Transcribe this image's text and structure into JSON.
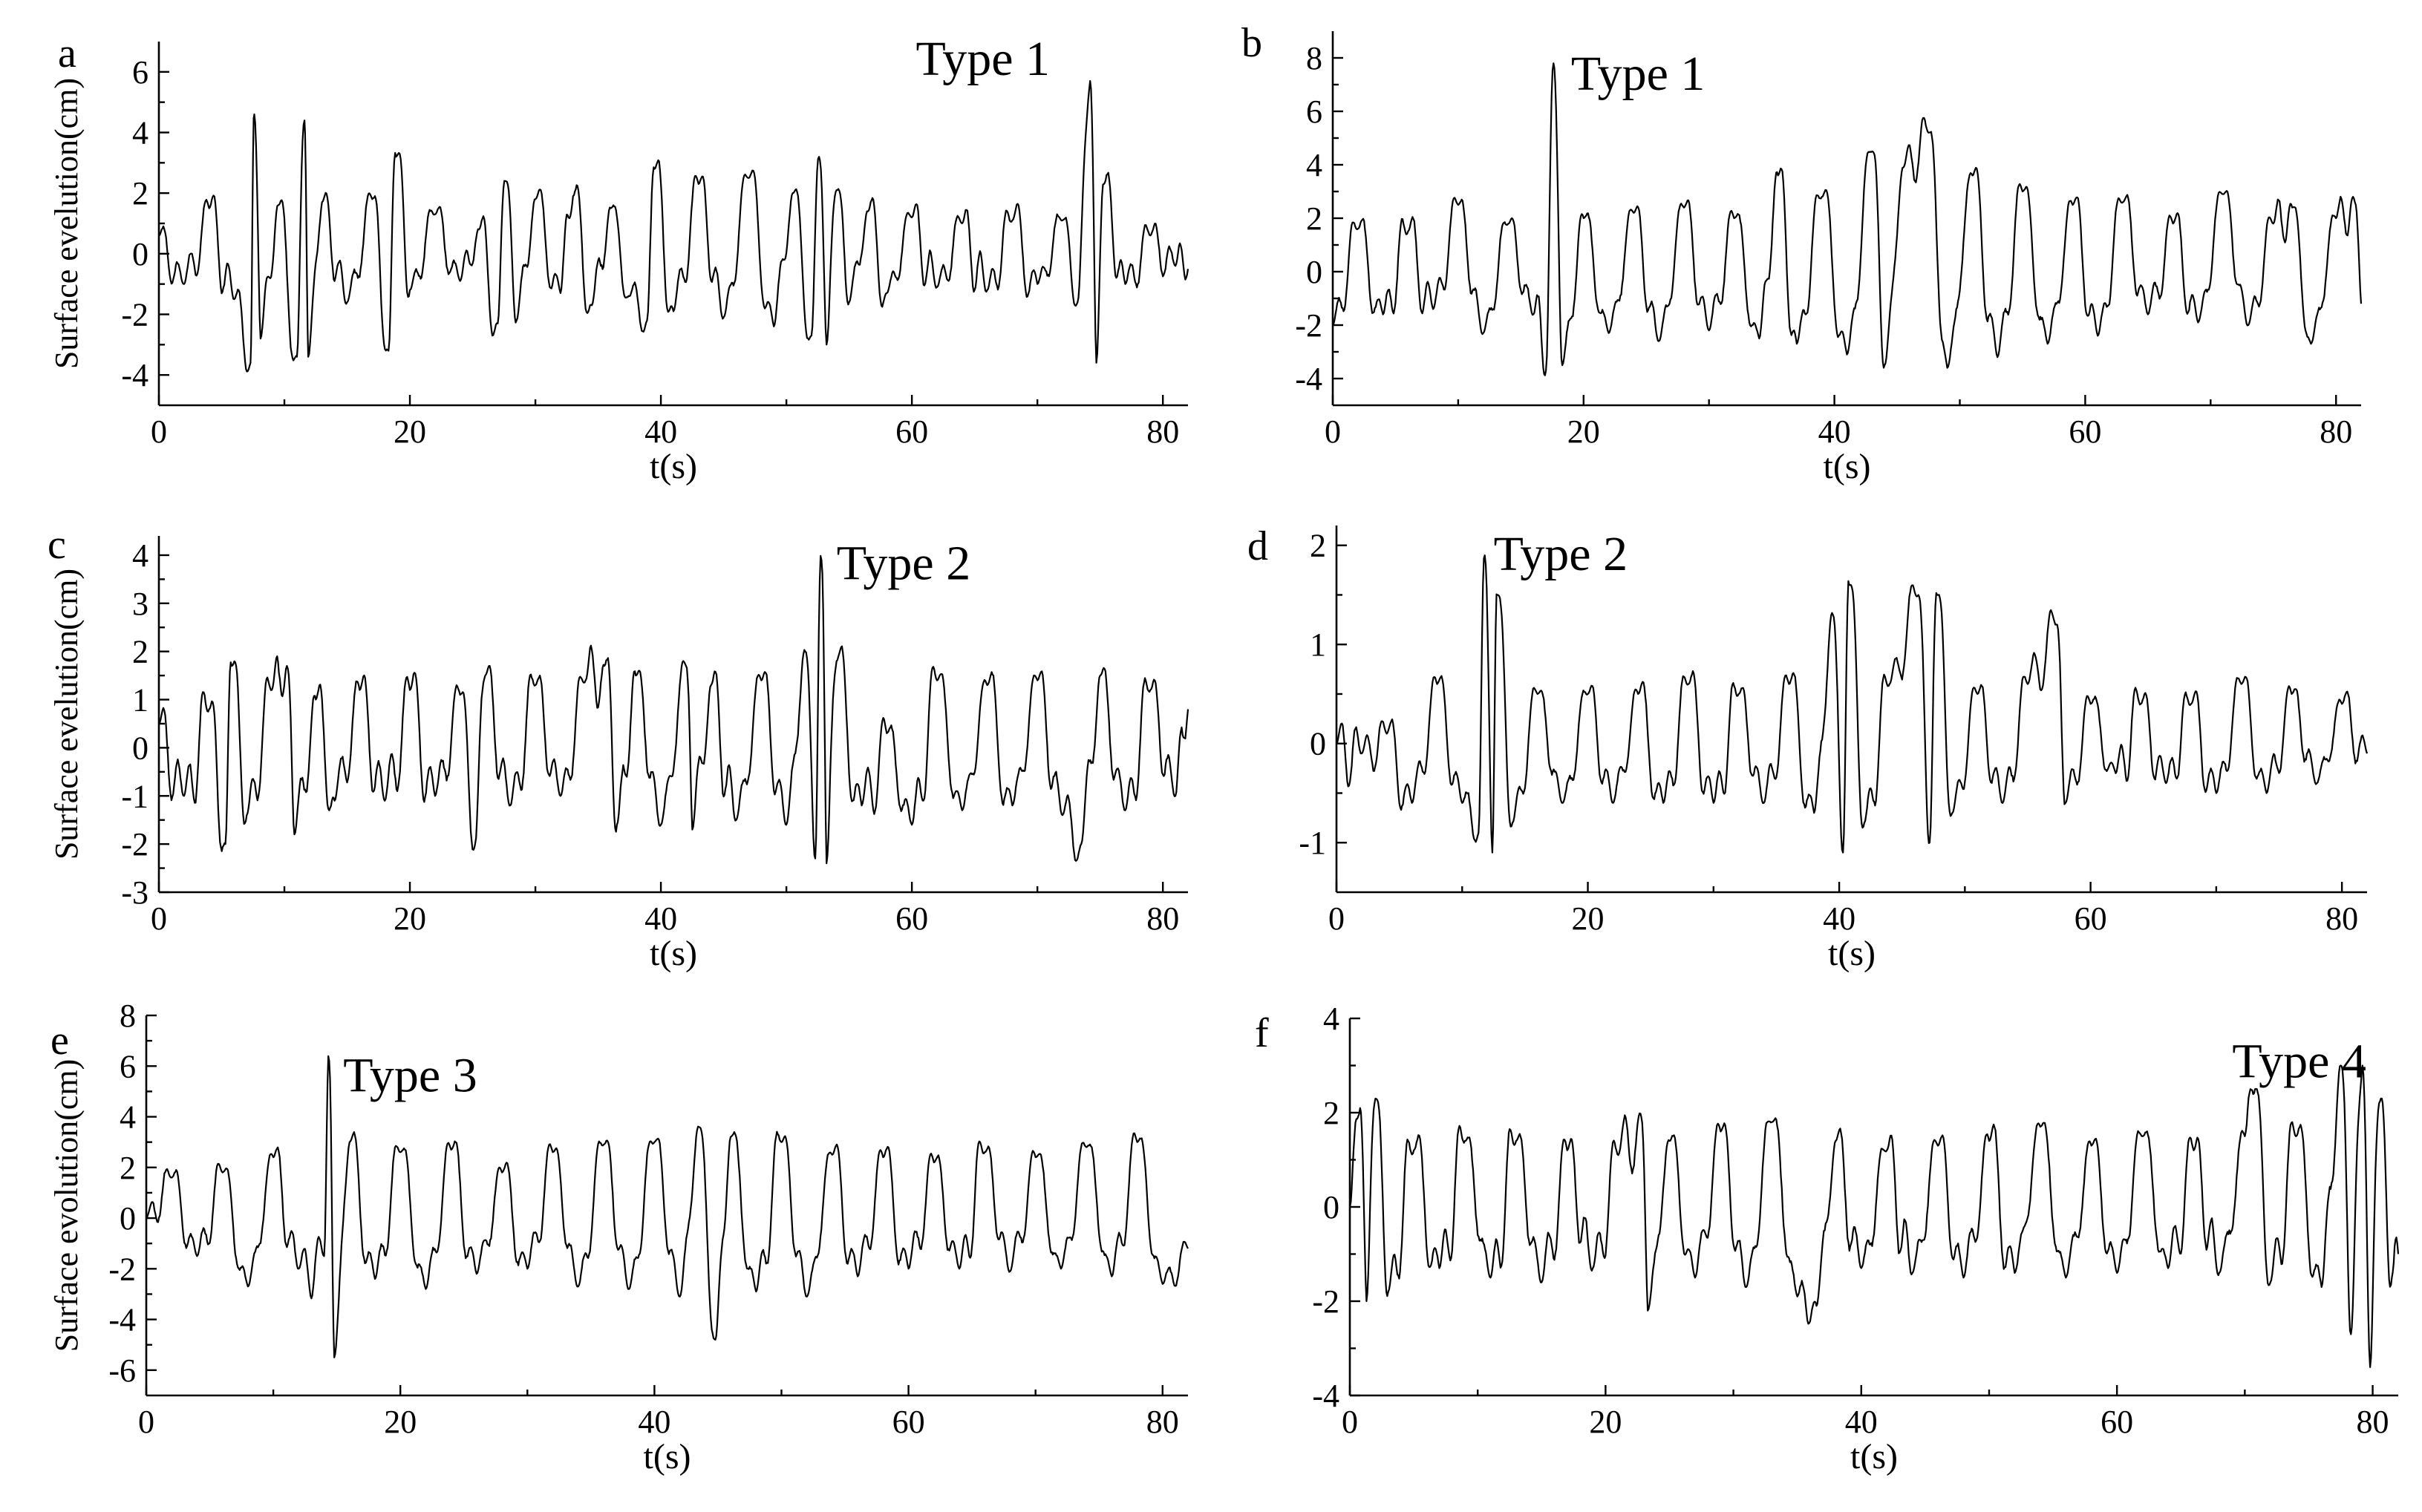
{
  "chart_data": [
    {
      "type": "line",
      "panel": "a",
      "annotation": "Type 1",
      "xlabel": "t(s)",
      "ylabel": "Surface evelution(cm)",
      "xlim": [
        0,
        82
      ],
      "ylim": [
        -5,
        7
      ],
      "xticks": [
        0,
        20,
        40,
        60,
        80
      ],
      "yticks": [
        -4,
        -2,
        0,
        2,
        4,
        6
      ],
      "grid": false,
      "seed": 11,
      "base_amplitude": 1.1,
      "series": [
        {
          "x": [
            0,
            2,
            4,
            6,
            7.3,
            7.6,
            8.1,
            9.5,
            11,
            11.6,
            11.9,
            13,
            15,
            17,
            18.3,
            18.9,
            20,
            22,
            24,
            25.5,
            27,
            27.6,
            28.5,
            30,
            32,
            33,
            34.5,
            36,
            37.5,
            38.9,
            39.5,
            41,
            43,
            45,
            47,
            49,
            50.5,
            52,
            52.6,
            53.2,
            54,
            55,
            56.5,
            58,
            60,
            62,
            64,
            66,
            68,
            70,
            72,
            73.2,
            74.2,
            74.7,
            75.3,
            77,
            79,
            81,
            82
          ],
          "y": [
            0.6,
            -1.0,
            1.5,
            -1.5,
            -3.6,
            4.6,
            -2.8,
            1.6,
            -3.4,
            4.4,
            -3.4,
            1.7,
            -1.6,
            1.8,
            -3.2,
            3.2,
            -1.2,
            1.3,
            -0.9,
            0.8,
            -2.3,
            2.4,
            -2.2,
            1.8,
            -1.3,
            1.9,
            -1.7,
            1.5,
            -1.4,
            -2.2,
            2.8,
            -1.9,
            2.3,
            -2.1,
            2.5,
            -2.4,
            2.0,
            -2.7,
            3.2,
            -3.0,
            2.1,
            -1.6,
            1.4,
            -1.3,
            1.2,
            -1.1,
            1.0,
            -1.2,
            1.1,
            -1.0,
            1.1,
            -1.6,
            5.7,
            -3.6,
            2.3,
            -1.0,
            0.6,
            -0.4,
            -0.5
          ]
        }
      ]
    },
    {
      "type": "line",
      "panel": "b",
      "annotation": "Type 1",
      "xlabel": "t(s)",
      "ylabel": "",
      "xlim": [
        0,
        82
      ],
      "ylim": [
        -5,
        9
      ],
      "xticks": [
        0,
        20,
        40,
        60,
        80
      ],
      "yticks": [
        -4,
        -2,
        0,
        2,
        4,
        6,
        8
      ],
      "grid": false,
      "seed": 23,
      "base_amplitude": 1.3,
      "series": [
        {
          "x": [
            0,
            2,
            4,
            6,
            8,
            10,
            12,
            14,
            16,
            17.0,
            17.6,
            18.3,
            20,
            22,
            24,
            26,
            28,
            30,
            32,
            34,
            35.5,
            37,
            39,
            41,
            43,
            44,
            45.5,
            47.5,
            49,
            51,
            53,
            55,
            57,
            59,
            61,
            63,
            65,
            67,
            69,
            71,
            73,
            75,
            76.5,
            78,
            80,
            81.5,
            82
          ],
          "y": [
            -2.0,
            1.6,
            -1.6,
            1.5,
            -1.4,
            2.5,
            -2.3,
            1.8,
            -1.6,
            -3.7,
            7.8,
            -3.5,
            2.0,
            -2.3,
            2.2,
            -2.6,
            2.4,
            -2.2,
            2.0,
            -2.5,
            3.6,
            -2.7,
            2.8,
            -3.1,
            4.5,
            -3.5,
            3.9,
            5.2,
            -3.6,
            3.6,
            -3.2,
            3.0,
            -2.7,
            2.5,
            -2.4,
            2.6,
            -1.6,
            1.8,
            -1.9,
            2.9,
            -2.0,
            1.8,
            2.4,
            -2.7,
            2.0,
            2.6,
            -1.2
          ]
        }
      ]
    },
    {
      "type": "line",
      "panel": "c",
      "annotation": "Type 2",
      "xlabel": "t(s)",
      "ylabel": "Surface evelution(cm)",
      "xlim": [
        0,
        82
      ],
      "ylim": [
        -3,
        4.4
      ],
      "xticks": [
        0,
        20,
        40,
        60,
        80
      ],
      "yticks": [
        -3,
        -2,
        -1,
        0,
        1,
        2,
        3,
        4
      ],
      "grid": false,
      "seed": 37,
      "base_amplitude": 0.9,
      "series": [
        {
          "x": [
            0,
            2,
            4,
            5.3,
            5.8,
            7,
            9,
            10.2,
            10.8,
            12.5,
            14,
            16,
            18,
            20,
            22,
            24,
            25.2,
            26,
            28,
            30,
            32,
            34,
            35.5,
            36.5,
            38,
            40,
            42,
            42.5,
            44,
            46,
            48,
            50,
            51.5,
            52.3,
            52.8,
            53.2,
            54,
            56,
            58,
            60,
            62,
            64,
            66,
            68,
            70,
            72,
            73.5,
            75,
            77,
            79,
            81,
            82
          ],
          "y": [
            0.5,
            -1.0,
            0.8,
            -2.0,
            1.7,
            -1.4,
            1.2,
            1.7,
            -1.8,
            1.0,
            -1.1,
            1.2,
            -1.1,
            1.2,
            -1.0,
            1.1,
            -2.0,
            1.5,
            -1.2,
            1.3,
            -1.0,
            1.4,
            1.7,
            -1.6,
            1.5,
            -1.6,
            1.7,
            -1.7,
            1.3,
            -1.5,
            1.4,
            -1.6,
            2.0,
            -2.3,
            3.9,
            -2.4,
            1.8,
            -1.2,
            0.3,
            -1.6,
            1.4,
            -1.3,
            1.3,
            -1.2,
            1.4,
            -1.4,
            -2.0,
            1.5,
            -1.3,
            1.2,
            -1.0,
            0.8
          ]
        }
      ]
    },
    {
      "type": "line",
      "panel": "d",
      "annotation": "Type 2",
      "xlabel": "t(s)",
      "ylabel": "",
      "xlim": [
        0,
        82
      ],
      "ylim": [
        -1.5,
        2.2
      ],
      "xticks": [
        0,
        20,
        40,
        60,
        80
      ],
      "yticks": [
        -1,
        0,
        1,
        2
      ],
      "grid": false,
      "seed": 41,
      "base_amplitude": 0.35,
      "series": [
        {
          "x": [
            0,
            2,
            4,
            6,
            8,
            10,
            11.3,
            11.8,
            12.4,
            12.8,
            14,
            16,
            18,
            20,
            22,
            24,
            26,
            28,
            30,
            32,
            34,
            36,
            38,
            39.5,
            40.3,
            40.8,
            42,
            44,
            46.3,
            47.2,
            47.8,
            49,
            51,
            53,
            55,
            57.2,
            58,
            60,
            62,
            64,
            66,
            68,
            70,
            72,
            74,
            76,
            78,
            80,
            82
          ],
          "y": [
            0.0,
            -0.1,
            0.1,
            -0.6,
            0.6,
            -0.6,
            -0.9,
            1.9,
            -1.1,
            1.5,
            -0.8,
            0.5,
            -0.6,
            0.5,
            -0.6,
            0.5,
            -0.6,
            0.6,
            -0.6,
            0.5,
            -0.6,
            0.6,
            -0.7,
            1.3,
            -1.1,
            1.6,
            -0.8,
            0.6,
            1.5,
            -1.0,
            1.5,
            -0.7,
            0.5,
            -0.6,
            0.6,
            1.2,
            -0.6,
            0.4,
            -0.3,
            0.4,
            -0.4,
            0.4,
            -0.5,
            0.6,
            -0.5,
            0.5,
            -0.4,
            0.4,
            -0.1
          ]
        }
      ]
    },
    {
      "type": "line",
      "panel": "e",
      "annotation": "Type 3",
      "xlabel": "t(s)",
      "ylabel": "Surface evolution(cm)",
      "xlim": [
        0,
        82
      ],
      "ylim": [
        -7,
        8
      ],
      "xticks": [
        0,
        20,
        40,
        60,
        80
      ],
      "yticks": [
        -6,
        -4,
        -2,
        0,
        2,
        4,
        6,
        8
      ],
      "grid": false,
      "seed": 53,
      "base_amplitude": 1.4,
      "series": [
        {
          "x": [
            0,
            2,
            4,
            6,
            8,
            10,
            12,
            14.0,
            14.4,
            14.8,
            16,
            18,
            20,
            22,
            24,
            26,
            28,
            30,
            32,
            34,
            36,
            38,
            40,
            42,
            43.5,
            44.8,
            46,
            48,
            50,
            52,
            54,
            56,
            58,
            60,
            62,
            64,
            66,
            68,
            70,
            72,
            74,
            76,
            78,
            80,
            82
          ],
          "y": [
            0.0,
            1.6,
            -1.5,
            1.8,
            -2.7,
            2.4,
            -2.0,
            -1.5,
            6.2,
            -5.5,
            3.0,
            -2.4,
            2.6,
            -2.8,
            2.7,
            -2.2,
            1.8,
            -2.0,
            2.6,
            -2.7,
            2.9,
            -2.8,
            3.0,
            -3.1,
            3.6,
            -4.8,
            3.2,
            -2.9,
            3.0,
            -3.1,
            2.5,
            -2.3,
            2.4,
            -2.0,
            2.2,
            -2.0,
            2.6,
            -2.1,
            2.4,
            -2.0,
            2.8,
            -2.3,
            3.0,
            -2.6,
            -1.2
          ]
        }
      ]
    },
    {
      "type": "line",
      "panel": "f",
      "annotation": "Type 4",
      "xlabel": "t(s)",
      "ylabel": "",
      "xlim": [
        0,
        82
      ],
      "ylim": [
        -4,
        4
      ],
      "xticks": [
        0,
        20,
        40,
        60,
        80
      ],
      "yticks": [
        -4,
        -2,
        0,
        2,
        4
      ],
      "grid": false,
      "seed": 67,
      "base_amplitude": 0.9,
      "series": [
        {
          "x": [
            0,
            0.8,
            1.3,
            2,
            3,
            5,
            7,
            9,
            11,
            13,
            15,
            17,
            19,
            21,
            22.8,
            23.3,
            25,
            27,
            29,
            31,
            33,
            35,
            36.5,
            38,
            40,
            42,
            44,
            46,
            48,
            50,
            52,
            54,
            56,
            58,
            60,
            62,
            64,
            66,
            68,
            70,
            70.8,
            72,
            74,
            76,
            77.5,
            78.3,
            79.2,
            79.8,
            80.5,
            81.5,
            82
          ],
          "y": [
            0.0,
            2.1,
            -2.0,
            2.3,
            -1.8,
            1.2,
            -1.3,
            1.4,
            -1.5,
            1.4,
            -1.6,
            1.2,
            -1.3,
            1.1,
            1.9,
            -2.2,
            1.4,
            -1.5,
            1.6,
            -1.7,
            1.8,
            -1.9,
            -2.1,
            1.4,
            -1.3,
            1.2,
            -1.4,
            1.3,
            -1.5,
            1.4,
            -1.4,
            1.7,
            -1.5,
            1.3,
            -1.4,
            1.5,
            -1.3,
            1.2,
            -1.4,
            1.5,
            2.5,
            -1.6,
            1.5,
            -1.7,
            3.0,
            -2.7,
            3.0,
            -3.4,
            2.2,
            -1.5,
            -1.0
          ]
        }
      ]
    }
  ]
}
